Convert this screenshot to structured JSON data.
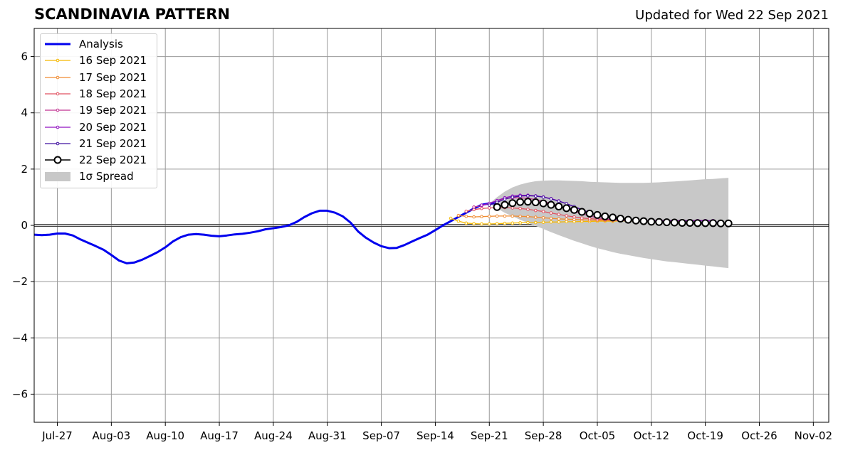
{
  "title": "SCANDINAVIA PATTERN",
  "subtitle": "Updated for Wed 22 Sep 2021",
  "colors": {
    "analysis": "#0000ee",
    "forecast_22": "#000000",
    "spread": "#c8c8c8",
    "grid": "#999999",
    "zero_line": "#444444"
  },
  "chart_data": {
    "type": "line",
    "title": "SCANDINAVIA PATTERN",
    "subtitle": "Updated for Wed 22 Sep 2021",
    "xlabel": "",
    "ylabel": "",
    "x_ticks": [
      "Jul-27",
      "Aug-03",
      "Aug-10",
      "Aug-17",
      "Aug-24",
      "Aug-31",
      "Sep-07",
      "Sep-14",
      "Sep-21",
      "Sep-28",
      "Oct-05",
      "Oct-12",
      "Oct-19",
      "Oct-26",
      "Nov-02"
    ],
    "y_ticks": [
      "6",
      "4",
      "2",
      "0",
      "−2",
      "−4",
      "−6"
    ],
    "xlim": [
      "2021-07-24",
      "2021-11-04"
    ],
    "ylim": [
      -7,
      7
    ],
    "grid": true,
    "legend_position": "top-left",
    "analysis": {
      "name": "Analysis",
      "x": [
        "2021-07-24",
        "2021-07-25",
        "2021-07-26",
        "2021-07-27",
        "2021-07-28",
        "2021-07-29",
        "2021-07-30",
        "2021-07-31",
        "2021-08-01",
        "2021-08-02",
        "2021-08-03",
        "2021-08-04",
        "2021-08-05",
        "2021-08-06",
        "2021-08-07",
        "2021-08-08",
        "2021-08-09",
        "2021-08-10",
        "2021-08-11",
        "2021-08-12",
        "2021-08-13",
        "2021-08-14",
        "2021-08-15",
        "2021-08-16",
        "2021-08-17",
        "2021-08-18",
        "2021-08-19",
        "2021-08-20",
        "2021-08-21",
        "2021-08-22",
        "2021-08-23",
        "2021-08-24",
        "2021-08-25",
        "2021-08-26",
        "2021-08-27",
        "2021-08-28",
        "2021-08-29",
        "2021-08-30",
        "2021-08-31",
        "2021-09-01",
        "2021-09-02",
        "2021-09-03",
        "2021-09-04",
        "2021-09-05",
        "2021-09-06",
        "2021-09-07",
        "2021-09-08",
        "2021-09-09",
        "2021-09-10",
        "2021-09-11",
        "2021-09-12",
        "2021-09-13",
        "2021-09-14",
        "2021-09-15",
        "2021-09-16",
        "2021-09-17",
        "2021-09-18",
        "2021-09-19",
        "2021-09-20",
        "2021-09-21",
        "2021-09-22"
      ],
      "y": [
        -0.33,
        -0.35,
        -0.33,
        -0.29,
        -0.29,
        -0.36,
        -0.5,
        -0.62,
        -0.74,
        -0.87,
        -1.05,
        -1.25,
        -1.35,
        -1.32,
        -1.22,
        -1.09,
        -0.95,
        -0.78,
        -0.57,
        -0.42,
        -0.33,
        -0.31,
        -0.33,
        -0.37,
        -0.39,
        -0.36,
        -0.32,
        -0.3,
        -0.26,
        -0.21,
        -0.14,
        -0.1,
        -0.06,
        0.0,
        0.12,
        0.29,
        0.43,
        0.52,
        0.52,
        0.45,
        0.32,
        0.1,
        -0.22,
        -0.44,
        -0.61,
        -0.74,
        -0.81,
        -0.8,
        -0.7,
        -0.57,
        -0.45,
        -0.33,
        -0.17,
        0.0,
        0.15,
        0.3,
        0.45,
        0.6,
        0.73,
        0.78,
        0.78
      ]
    },
    "series": [
      {
        "name": "16 Sep 2021",
        "color": "#f5b800",
        "x_start": "2021-09-16",
        "values": [
          0.25,
          0.15,
          0.08,
          0.06,
          0.05,
          0.05,
          0.06,
          0.07,
          0.08,
          0.09,
          0.1,
          0.1,
          0.11,
          0.12,
          0.12,
          0.13,
          0.13,
          0.14,
          0.14,
          0.15,
          0.15,
          0.15,
          0.16,
          0.16,
          0.16,
          0.16,
          0.16,
          0.16,
          0.16,
          0.16,
          0.16
        ]
      },
      {
        "name": "17 Sep 2021",
        "color": "#f08b30",
        "x_start": "2021-09-17",
        "values": [
          0.35,
          0.32,
          0.3,
          0.31,
          0.32,
          0.33,
          0.33,
          0.33,
          0.32,
          0.31,
          0.29,
          0.27,
          0.25,
          0.23,
          0.22,
          0.21,
          0.2,
          0.19,
          0.18,
          0.18,
          0.17,
          0.17,
          0.17,
          0.17,
          0.17,
          0.17,
          0.17,
          0.17,
          0.17,
          0.17,
          0.17
        ]
      },
      {
        "name": "18 Sep 2021",
        "color": "#e05060",
        "x_start": "2021-09-18",
        "values": [
          0.5,
          0.56,
          0.6,
          0.62,
          0.63,
          0.63,
          0.62,
          0.6,
          0.57,
          0.53,
          0.49,
          0.44,
          0.39,
          0.34,
          0.3,
          0.26,
          0.24,
          0.22,
          0.2,
          0.19,
          0.18,
          0.17,
          0.17,
          0.17,
          0.17,
          0.17,
          0.17,
          0.17,
          0.17,
          0.17,
          0.17
        ]
      },
      {
        "name": "19 Sep 2021",
        "color": "#c03090",
        "x_start": "2021-09-19",
        "values": [
          0.65,
          0.7,
          0.78,
          0.88,
          0.95,
          0.98,
          0.98,
          0.96,
          0.92,
          0.86,
          0.78,
          0.69,
          0.6,
          0.5,
          0.41,
          0.33,
          0.27,
          0.23,
          0.2,
          0.18,
          0.17,
          0.17,
          0.17,
          0.17,
          0.17,
          0.17,
          0.17,
          0.17,
          0.17,
          0.17,
          0.17
        ]
      },
      {
        "name": "20 Sep 2021",
        "color": "#9010c0",
        "x_start": "2021-09-20",
        "values": [
          0.72,
          0.78,
          0.88,
          0.98,
          1.04,
          1.07,
          1.07,
          1.05,
          1.01,
          0.95,
          0.87,
          0.77,
          0.66,
          0.55,
          0.45,
          0.36,
          0.29,
          0.24,
          0.21,
          0.19,
          0.18,
          0.17,
          0.17,
          0.17,
          0.17,
          0.17,
          0.17,
          0.17,
          0.17,
          0.17,
          0.17
        ]
      },
      {
        "name": "21 Sep 2021",
        "color": "#4010a0",
        "x_start": "2021-09-21",
        "values": [
          0.72,
          0.82,
          0.93,
          1.0,
          1.04,
          1.05,
          1.04,
          1.0,
          0.94,
          0.86,
          0.77,
          0.67,
          0.56,
          0.46,
          0.37,
          0.3,
          0.25,
          0.21,
          0.18,
          0.16,
          0.15,
          0.14,
          0.13,
          0.13,
          0.12,
          0.12,
          0.12,
          0.12,
          0.12,
          0.12,
          0.12
        ]
      },
      {
        "name": "22 Sep 2021",
        "color": "#000000",
        "x_start": "2021-09-22",
        "values": [
          0.65,
          0.73,
          0.79,
          0.83,
          0.84,
          0.82,
          0.78,
          0.73,
          0.67,
          0.61,
          0.55,
          0.48,
          0.42,
          0.37,
          0.32,
          0.28,
          0.24,
          0.2,
          0.17,
          0.15,
          0.13,
          0.12,
          0.11,
          0.1,
          0.09,
          0.09,
          0.08,
          0.08,
          0.08,
          0.07,
          0.07
        ]
      }
    ],
    "spread": {
      "name": "1σ Spread",
      "x_start": "2021-09-21",
      "upper": [
        0.78,
        1.0,
        1.2,
        1.35,
        1.45,
        1.52,
        1.57,
        1.59,
        1.6,
        1.6,
        1.59,
        1.58,
        1.57,
        1.55,
        1.54,
        1.53,
        1.52,
        1.51,
        1.51,
        1.51,
        1.51,
        1.52,
        1.53,
        1.55,
        1.56,
        1.58,
        1.6,
        1.62,
        1.64,
        1.65,
        1.67,
        1.69
      ],
      "lower": [
        0.78,
        0.6,
        0.45,
        0.32,
        0.2,
        0.09,
        -0.02,
        -0.13,
        -0.24,
        -0.35,
        -0.45,
        -0.55,
        -0.64,
        -0.73,
        -0.81,
        -0.88,
        -0.95,
        -1.01,
        -1.06,
        -1.11,
        -1.16,
        -1.2,
        -1.24,
        -1.28,
        -1.31,
        -1.34,
        -1.37,
        -1.4,
        -1.43,
        -1.46,
        -1.49,
        -1.52
      ]
    }
  }
}
